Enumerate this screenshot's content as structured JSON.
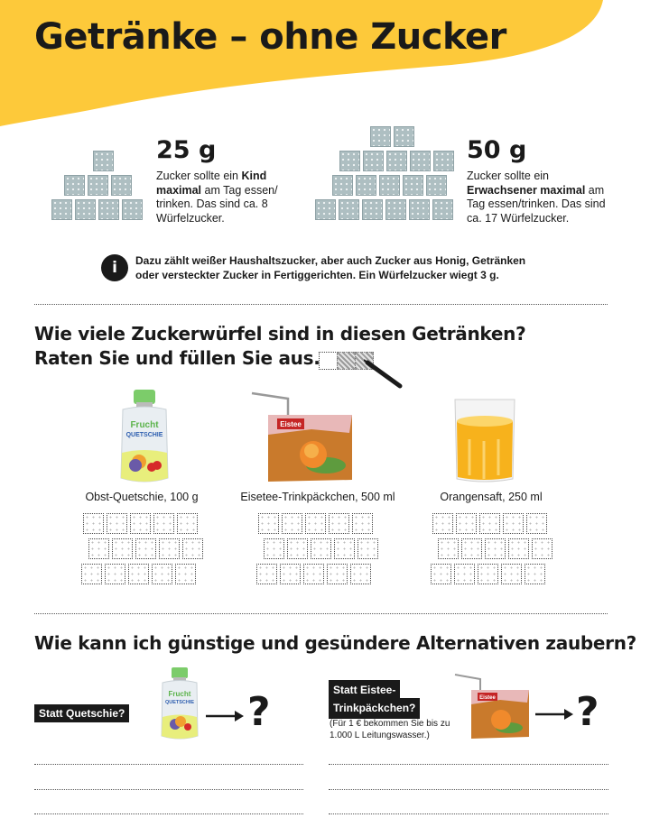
{
  "header": {
    "title": "Getränke – ohne Zucker",
    "accent_color": "#fdc93a"
  },
  "intake": {
    "child": {
      "amount": "25 g",
      "text_1": "Zucker sollte ein ",
      "text_bold": "Kind maximal",
      "text_2": " am Tag essen/ trinken. Das sind ca. 8 Würfelzucker."
    },
    "adult": {
      "amount": "50 g",
      "text_1": "Zucker sollte ein ",
      "text_bold": "Erwachsener maximal",
      "text_2": " am Tag essen/trinken. Das sind ca. 17 Würfelzucker."
    }
  },
  "info": {
    "icon": "info-icon",
    "icon_glyph": "i",
    "text": "Dazu zählt weißer Haushaltszucker, aber auch Zucker aus Honig, Getränken oder versteckter Zucker in Fertiggerichten. Ein Würfelzucker wiegt 3 g."
  },
  "quiz": {
    "heading_line1": "Wie viele Zuckerwürfel sind in diesen Getränken?",
    "heading_line2": "Raten Sie und füllen Sie aus.",
    "drinks": [
      {
        "caption": "Obst-Quetschie, 100 g",
        "pouch_label_1": "Frucht",
        "pouch_label_2": "QUETSCHIE"
      },
      {
        "caption": "Eisetee-Trinkpäckchen, 500 ml",
        "pack_label": "Eistee"
      },
      {
        "caption": "Orangensaft, 250 ml"
      }
    ]
  },
  "alternatives": {
    "heading": "Wie kann ich günstige und gesündere Alternativen zaubern?",
    "left": {
      "tag": "Statt Quetschie?",
      "pouch_label_1": "Frucht",
      "pouch_label_2": "QUETSCHIE",
      "answer": "?"
    },
    "right": {
      "tag_line1": "Statt Eistee-",
      "tag_line2": "Trinkpäckchen?",
      "note": "(Für 1 € bekommen Sie bis zu 1.000 L Leitungswasser.)",
      "pack_label": "Eistee",
      "answer": "?"
    }
  }
}
